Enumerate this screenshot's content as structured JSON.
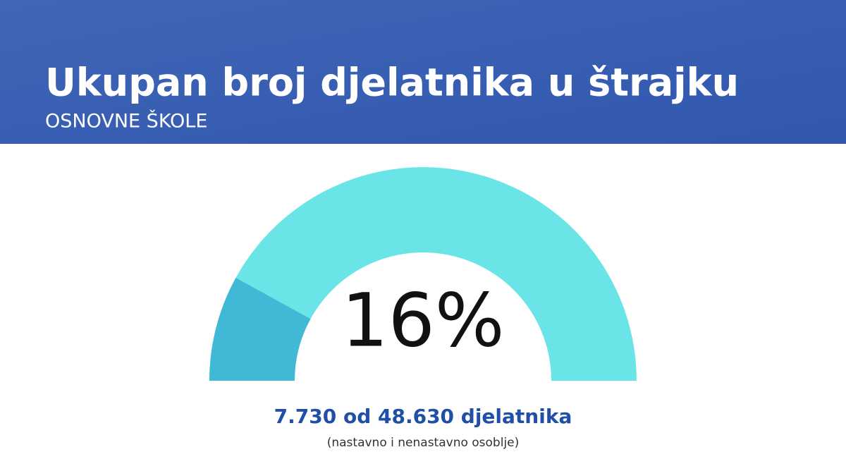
{
  "chart_data": {
    "type": "gauge",
    "title": "Ukupan broj djelatnika u štrajku",
    "subtitle": "OSNOVNE ŠKOLE",
    "values": [
      16
    ],
    "value_labels": [
      "16%"
    ],
    "ylim": [
      0,
      100
    ],
    "colors": [
      "#41b9d6",
      "#6be4e8"
    ],
    "annotations": [
      "7.730 od 48.630 djelatnika",
      "(nastavno i nenastavno osoblje)"
    ]
  }
}
